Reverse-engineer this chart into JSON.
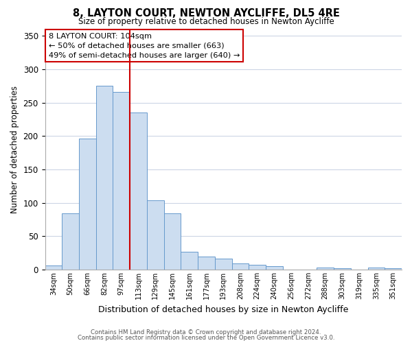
{
  "title": "8, LAYTON COURT, NEWTON AYCLIFFE, DL5 4RE",
  "subtitle": "Size of property relative to detached houses in Newton Aycliffe",
  "xlabel": "Distribution of detached houses by size in Newton Aycliffe",
  "ylabel": "Number of detached properties",
  "bar_labels": [
    "34sqm",
    "50sqm",
    "66sqm",
    "82sqm",
    "97sqm",
    "113sqm",
    "129sqm",
    "145sqm",
    "161sqm",
    "177sqm",
    "193sqm",
    "208sqm",
    "224sqm",
    "240sqm",
    "256sqm",
    "272sqm",
    "288sqm",
    "303sqm",
    "319sqm",
    "335sqm",
    "351sqm"
  ],
  "bar_values": [
    6,
    84,
    196,
    275,
    266,
    235,
    104,
    84,
    27,
    20,
    16,
    9,
    7,
    5,
    0,
    0,
    3,
    2,
    0,
    3,
    2
  ],
  "bar_color": "#ccddf0",
  "bar_edge_color": "#6699cc",
  "vline_x": 4.5,
  "vline_color": "#cc0000",
  "ylim": [
    0,
    360
  ],
  "yticks": [
    0,
    50,
    100,
    150,
    200,
    250,
    300,
    350
  ],
  "annotation_title": "8 LAYTON COURT: 104sqm",
  "annotation_line1": "← 50% of detached houses are smaller (663)",
  "annotation_line2": "49% of semi-detached houses are larger (640) →",
  "annotation_box_color": "#ffffff",
  "annotation_box_edge": "#cc0000",
  "footer_line1": "Contains HM Land Registry data © Crown copyright and database right 2024.",
  "footer_line2": "Contains public sector information licensed under the Open Government Licence v3.0.",
  "background_color": "#ffffff",
  "grid_color": "#ccd5e5"
}
